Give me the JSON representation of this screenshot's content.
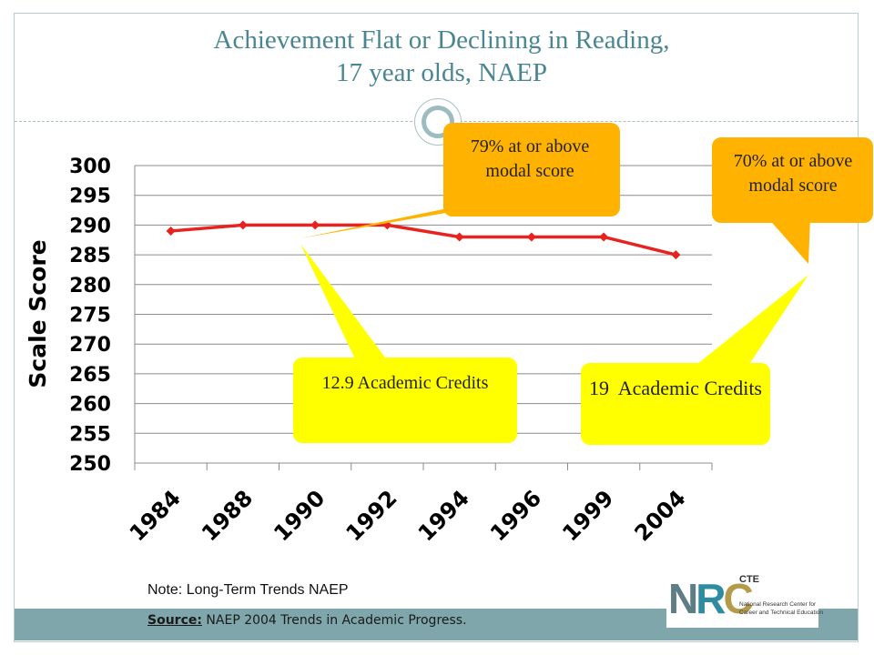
{
  "title": {
    "line1": "Achievement Flat or Declining in Reading,",
    "line2": "17 year olds, NAEP"
  },
  "chart_data": {
    "type": "line",
    "ylabel": "Scale Score",
    "xlabel": "",
    "categories": [
      "1984",
      "1988",
      "1990",
      "1992",
      "1994",
      "1996",
      "1999",
      "2004"
    ],
    "series": [
      {
        "values": [
          289,
          290,
          290,
          290,
          288,
          288,
          288,
          285
        ]
      }
    ],
    "ylim": [
      250,
      300
    ],
    "yticks": [
      "300",
      "295",
      "290",
      "285",
      "280",
      "275",
      "270",
      "265",
      "260",
      "255",
      "250"
    ],
    "grid": true,
    "line_color": "#e8231f",
    "annotations": {
      "callout_1990": "79% at or above modal score",
      "callout_2004": "70% at or above modal score",
      "credits_1990": "12.9 Academic Credits",
      "credits_2004": "19  Academic Credits"
    }
  },
  "note": "Note: Long-Term Trends NAEP",
  "footer": {
    "label": "Source:",
    "text": " NAEP 2004 Trends in Academic Progress."
  },
  "logo": {
    "letters_n": "N",
    "letters_r": "R",
    "letters_c": "C",
    "superscript": "CTE",
    "line1": "National Research Center for",
    "line2": "Career and Technical Education"
  },
  "colors": {
    "title": "#4a8691",
    "orange_callout": "#ffb300",
    "yellow_callout": "#ffff00",
    "footer_bar": "#7fa6ab"
  }
}
